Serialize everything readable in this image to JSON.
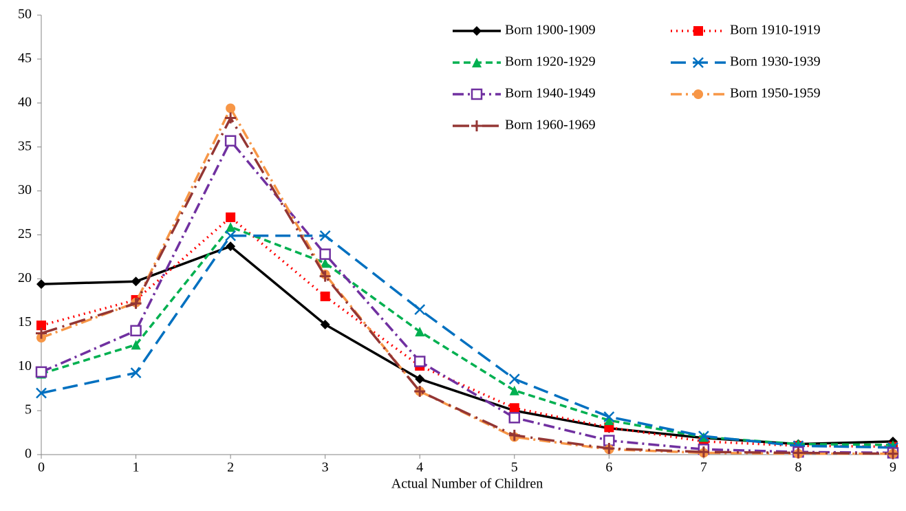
{
  "chart_data": {
    "type": "line",
    "x_label": "Actual Number of Children",
    "x": [
      0,
      1,
      2,
      3,
      4,
      5,
      6,
      7,
      8,
      9
    ],
    "xlim": [
      0,
      9
    ],
    "xticks": [
      0,
      1,
      2,
      3,
      4,
      5,
      6,
      7,
      8,
      9
    ],
    "ylim": [
      0,
      50
    ],
    "yticks": [
      0,
      5,
      10,
      15,
      20,
      25,
      30,
      35,
      40,
      45,
      50
    ],
    "grid": false,
    "legend": "top-right",
    "series": [
      {
        "name": "Born 1900-1909",
        "color": "#000000",
        "marker": "diamond",
        "dash": "solid",
        "values": [
          19.4,
          19.7,
          23.7,
          14.8,
          8.6,
          5.0,
          3.0,
          1.9,
          1.2,
          1.5
        ]
      },
      {
        "name": "Born 1910-1919",
        "color": "#ff0000",
        "marker": "square",
        "dash": "dotted",
        "values": [
          14.7,
          17.6,
          27.0,
          18.0,
          10.1,
          5.3,
          3.1,
          1.5,
          1.0,
          0.9
        ]
      },
      {
        "name": "Born 1920-1929",
        "color": "#00b050",
        "marker": "triangle",
        "dash": "dashed",
        "values": [
          9.2,
          12.5,
          25.9,
          21.8,
          14.0,
          7.3,
          3.9,
          2.0,
          1.2,
          1.1
        ]
      },
      {
        "name": "Born 1930-1939",
        "color": "#0070c0",
        "marker": "x",
        "dash": "longdash",
        "values": [
          7.0,
          9.3,
          24.9,
          24.9,
          16.5,
          8.6,
          4.3,
          2.1,
          1.0,
          0.8
        ]
      },
      {
        "name": "Born 1940-1949",
        "color": "#7030a0",
        "marker": "open-square",
        "dash": "dashdot",
        "values": [
          9.4,
          14.1,
          35.7,
          22.8,
          10.6,
          4.2,
          1.6,
          0.6,
          0.3,
          0.2
        ]
      },
      {
        "name": "Born 1950-1959",
        "color": "#f79646",
        "marker": "circle",
        "dash": "dashdot",
        "values": [
          13.3,
          17.3,
          39.4,
          20.5,
          7.2,
          2.0,
          0.6,
          0.2,
          0.1,
          0.1
        ]
      },
      {
        "name": "Born 1960-1969",
        "color": "#943634",
        "marker": "plus",
        "dash": "longdashdot",
        "values": [
          13.8,
          17.2,
          38.3,
          20.3,
          7.2,
          2.2,
          0.7,
          0.3,
          0.2,
          0.1
        ]
      }
    ]
  }
}
